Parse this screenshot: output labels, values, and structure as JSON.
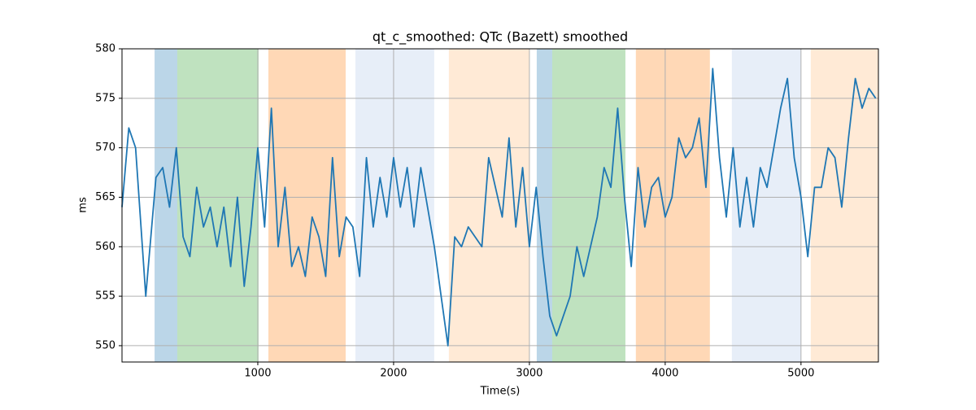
{
  "chart_data": {
    "type": "line",
    "title": "qt_c_smoothed: QTc (Bazett) smoothed",
    "xlabel": "Time(s)",
    "ylabel": "ms",
    "xlim": [
      0,
      5570
    ],
    "ylim": [
      548.35,
      580
    ],
    "xticks": [
      1000,
      2000,
      3000,
      4000,
      5000
    ],
    "yticks": [
      550,
      555,
      560,
      565,
      570,
      575,
      580
    ],
    "grid": true,
    "spans": [
      {
        "start": 240,
        "end": 407,
        "color": "#1f77b4",
        "alpha": 0.3
      },
      {
        "start": 407,
        "end": 1006,
        "color": "#2ca02c",
        "alpha": 0.3
      },
      {
        "start": 1078,
        "end": 1647,
        "color": "#ff7f0e",
        "alpha": 0.3
      },
      {
        "start": 1719,
        "end": 2299,
        "color": "#aec7e8",
        "alpha": 0.3
      },
      {
        "start": 2407,
        "end": 3000,
        "color": "#ffbb78",
        "alpha": 0.3
      },
      {
        "start": 3054,
        "end": 3168,
        "color": "#1f77b4",
        "alpha": 0.3
      },
      {
        "start": 3168,
        "end": 3707,
        "color": "#2ca02c",
        "alpha": 0.3
      },
      {
        "start": 3784,
        "end": 4329,
        "color": "#ff7f0e",
        "alpha": 0.3
      },
      {
        "start": 4491,
        "end": 5000,
        "color": "#aec7e8",
        "alpha": 0.3
      },
      {
        "start": 5072,
        "end": 5570,
        "color": "#ffbb78",
        "alpha": 0.3
      }
    ],
    "x": [
      0,
      50,
      100,
      150,
      175,
      200,
      250,
      300,
      350,
      400,
      450,
      500,
      550,
      600,
      650,
      700,
      750,
      800,
      850,
      900,
      950,
      1000,
      1050,
      1100,
      1150,
      1200,
      1250,
      1300,
      1350,
      1400,
      1450,
      1500,
      1550,
      1600,
      1650,
      1700,
      1750,
      1800,
      1850,
      1900,
      1950,
      2000,
      2050,
      2100,
      2150,
      2200,
      2250,
      2300,
      2350,
      2400,
      2450,
      2500,
      2550,
      2600,
      2650,
      2700,
      2750,
      2800,
      2850,
      2900,
      2950,
      3000,
      3050,
      3100,
      3150,
      3200,
      3250,
      3300,
      3350,
      3400,
      3450,
      3500,
      3550,
      3600,
      3650,
      3700,
      3750,
      3800,
      3850,
      3900,
      3950,
      4000,
      4050,
      4100,
      4150,
      4200,
      4250,
      4300,
      4350,
      4400,
      4450,
      4500,
      4550,
      4600,
      4650,
      4700,
      4750,
      4800,
      4850,
      4900,
      4950,
      5000,
      5050,
      5100,
      5150,
      5200,
      5250,
      5300,
      5350,
      5400,
      5450,
      5500,
      5550
    ],
    "series": [
      {
        "name": "qt_c_smoothed",
        "color": "#1f77b4",
        "values": [
          564,
          572,
          570,
          560,
          555,
          559,
          567,
          568,
          564,
          570,
          561,
          559,
          566,
          562,
          564,
          560,
          564,
          558,
          565,
          556,
          562,
          570,
          562,
          574,
          560,
          566,
          558,
          560,
          557,
          563,
          561,
          557,
          569,
          559,
          563,
          562,
          557,
          569,
          562,
          567,
          563,
          569,
          564,
          568,
          562,
          568,
          564,
          560,
          555,
          550,
          561,
          560,
          562,
          561,
          560,
          569,
          566,
          563,
          571,
          562,
          568,
          560,
          566,
          559,
          553,
          551,
          553,
          555,
          560,
          557,
          560,
          563,
          568,
          566,
          574,
          565,
          558,
          568,
          562,
          566,
          567,
          563,
          565,
          571,
          569,
          570,
          573,
          566,
          578,
          569,
          563,
          570,
          562,
          567,
          562,
          568,
          566,
          570,
          574,
          577,
          569,
          565,
          559,
          566,
          566,
          570,
          569,
          564,
          571,
          577,
          574,
          576,
          575
        ]
      }
    ]
  }
}
